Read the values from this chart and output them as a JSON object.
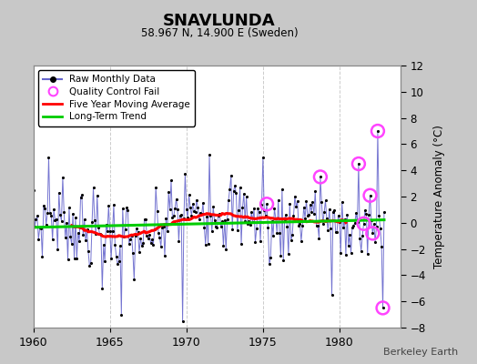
{
  "title": "SNAVLUNDA",
  "subtitle": "58.967 N, 14.900 E (Sweden)",
  "ylabel": "Temperature Anomaly (°C)",
  "attribution": "Berkeley Earth",
  "xlim": [
    1960,
    1984
  ],
  "ylim": [
    -8,
    12
  ],
  "yticks": [
    -8,
    -6,
    -4,
    -2,
    0,
    2,
    4,
    6,
    8,
    10,
    12
  ],
  "xticks": [
    1960,
    1965,
    1970,
    1975,
    1980
  ],
  "bg_color": "#c8c8c8",
  "plot_bg_color": "#ffffff",
  "raw_line_color": "#6666cc",
  "raw_dot_color": "#000000",
  "ma_color": "#ff0000",
  "trend_color": "#00cc00",
  "qc_color": "#ff44ff",
  "trend_slope": 0.025,
  "trend_intercept": -0.35,
  "seed": 7
}
